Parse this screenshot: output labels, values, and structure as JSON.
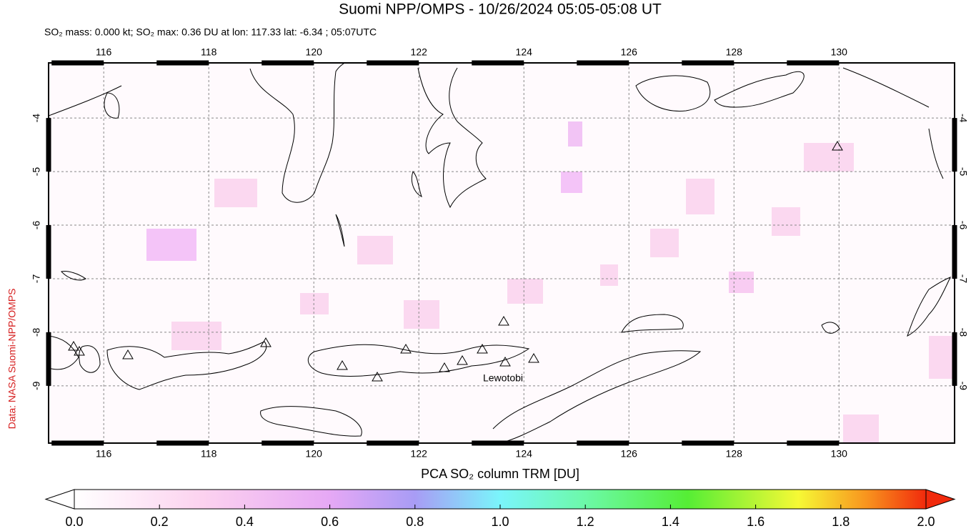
{
  "title": "Suomi NPP/OMPS - 10/26/2024 05:05-05:08 UT",
  "subtitle": "SO₂ mass: 0.000 kt; SO₂ max: 0.36 DU at lon: 117.33 lat: -6.34 ; 05:07UTC",
  "credit": "Data: NASA Suomi-NPP/OMPS",
  "map": {
    "xlim": [
      114.95,
      132.2
    ],
    "ylim": [
      -10.07,
      -2.97
    ],
    "xticks": [
      116,
      118,
      120,
      122,
      124,
      126,
      128,
      130
    ],
    "yticks": [
      -4,
      -5,
      -6,
      -7,
      -8,
      -9
    ],
    "grid": true,
    "annotation": "Lewotobi"
  },
  "colorbar": {
    "label": "PCA SO₂ column TRM [DU]",
    "lim": [
      0,
      2
    ],
    "ticks": [
      {
        "value": 0,
        "label": "0.0"
      },
      {
        "value": 0.2,
        "label": "0.2"
      },
      {
        "value": 0.4,
        "label": "0.4"
      },
      {
        "value": 0.6,
        "label": "0.6"
      },
      {
        "value": 0.8,
        "label": "0.8"
      },
      {
        "value": 1,
        "label": "1.0"
      },
      {
        "value": 1.2,
        "label": "1.2"
      },
      {
        "value": 1.4,
        "label": "1.4"
      },
      {
        "value": 1.6,
        "label": "1.6"
      },
      {
        "value": 1.8,
        "label": "1.8"
      },
      {
        "value": 2,
        "label": "2.0"
      }
    ]
  }
}
